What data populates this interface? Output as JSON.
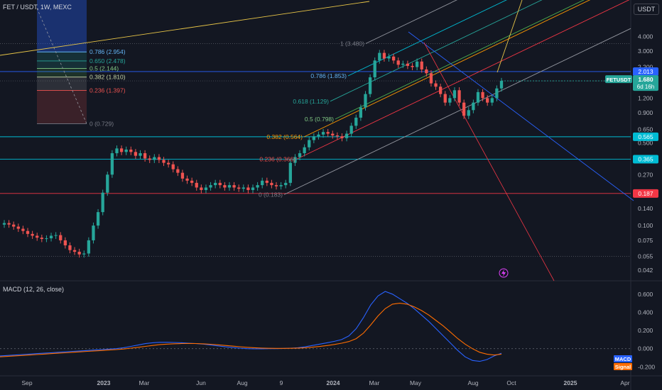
{
  "header": {
    "symbol_title": "FET / USDT, 1W, MEXC",
    "currency": "USDT",
    "macd_title": "MACD (12, 26, close)"
  },
  "colors": {
    "background": "#131722",
    "up": "#26a69a",
    "down": "#ef5350",
    "grid": "#2a2e39",
    "text": "#b2b5be",
    "macd_line": "#2962ff",
    "signal_line": "#ff6d00"
  },
  "chart_data": [
    {
      "type": "candlestick",
      "name": "FETUSDT",
      "scale": "log",
      "ylim": [
        0.036,
        6.0
      ],
      "y_ticks": [
        4.0,
        3.0,
        2.2,
        1.6,
        1.2,
        0.9,
        0.65,
        0.5,
        0.27,
        0.14,
        0.1,
        0.075,
        0.055,
        0.042
      ],
      "y_tick_labels": [
        "4.000",
        "3.000",
        "2.200",
        "1.600",
        "1.200",
        "0.900",
        "0.650",
        "0.500",
        "0.270",
        "0.140",
        "0.100",
        "0.075",
        "0.055",
        "0.042"
      ],
      "x_ticks": [
        "Sep",
        "2023",
        "Mar",
        "Jun",
        "Aug",
        "9",
        "2024",
        "Mar",
        "May",
        "Aug",
        "Oct",
        "2025",
        "Apr"
      ],
      "closes": [
        0.105,
        0.102,
        0.098,
        0.094,
        0.09,
        0.085,
        0.082,
        0.079,
        0.077,
        0.078,
        0.082,
        0.083,
        0.075,
        0.068,
        0.062,
        0.06,
        0.057,
        0.058,
        0.075,
        0.1,
        0.13,
        0.19,
        0.27,
        0.41,
        0.45,
        0.42,
        0.44,
        0.42,
        0.39,
        0.41,
        0.37,
        0.36,
        0.38,
        0.36,
        0.34,
        0.33,
        0.3,
        0.28,
        0.25,
        0.24,
        0.23,
        0.21,
        0.2,
        0.21,
        0.22,
        0.23,
        0.22,
        0.21,
        0.22,
        0.21,
        0.205,
        0.21,
        0.2,
        0.21,
        0.22,
        0.24,
        0.23,
        0.22,
        0.215,
        0.22,
        0.23,
        0.34,
        0.38,
        0.41,
        0.46,
        0.53,
        0.57,
        0.59,
        0.62,
        0.6,
        0.58,
        0.57,
        0.55,
        0.6,
        0.7,
        0.82,
        1.0,
        1.3,
        1.8,
        2.5,
        2.9,
        2.6,
        2.7,
        2.5,
        2.3,
        2.35,
        2.25,
        2.2,
        2.45,
        2.1,
        1.95,
        1.6,
        1.5,
        1.3,
        1.1,
        1.2,
        1.4,
        1.1,
        0.85,
        0.95,
        1.1,
        1.35,
        1.2,
        1.1,
        1.2,
        1.45,
        1.68
      ],
      "last_price": {
        "symbol": "FETUSDT",
        "price": "1.680",
        "countdown": "6d 16h"
      },
      "price_markers": [
        {
          "label": "2.013",
          "price": 2.013,
          "color": "#2962ff"
        },
        {
          "label": "0.565",
          "price": 0.565,
          "color": "#00bcd4"
        },
        {
          "label": "0.365",
          "price": 0.365,
          "color": "#00bcd4"
        },
        {
          "label": "0.187",
          "price": 0.187,
          "color": "#f23645"
        }
      ],
      "horizontal_lines": [
        {
          "price": 2.013,
          "color": "#2962ff"
        },
        {
          "price": 0.565,
          "color": "#00bcd4"
        },
        {
          "price": 0.365,
          "color": "#00bcd4"
        },
        {
          "price": 0.187,
          "color": "#f23645"
        }
      ],
      "fib_retracement_left": [
        {
          "label": "0.786 (2.954)",
          "price": 2.954,
          "color": "#64b5f6"
        },
        {
          "label": "0.650 (2.478)",
          "price": 2.478,
          "color": "#26a69a"
        },
        {
          "label": "0.5 (2.144)",
          "price": 2.144,
          "color": "#81c784"
        },
        {
          "label": "0.382 (1.810)",
          "price": 1.81,
          "color": "#c8d6a8"
        },
        {
          "label": "0.236 (1.397)",
          "price": 1.397,
          "color": "#ef5350"
        },
        {
          "label": "0 (0.729)",
          "price": 0.729,
          "color": "#787b86"
        }
      ],
      "fib_channel_labels": [
        {
          "label": "1 (3.480)",
          "price": 3.48,
          "color": "#787b86"
        },
        {
          "label": "0.786 (1.853)",
          "price": 1.853,
          "color": "#64b5f6"
        },
        {
          "label": "0.618 (1.129)",
          "price": 1.129,
          "color": "#26a69a"
        },
        {
          "label": "0.5 (0.798)",
          "price": 0.798,
          "color": "#81c784"
        },
        {
          "label": "0.382 (0.564)",
          "price": 0.564,
          "color": "#ff9800"
        },
        {
          "label": "0.236 (0.366)",
          "price": 0.366,
          "color": "#ef5350"
        },
        {
          "label": "0 (0.183)",
          "price": 0.183,
          "color": "#787b86"
        }
      ]
    },
    {
      "type": "line",
      "name": "MACD (12, 26, close)",
      "ylim": [
        -0.26,
        0.7
      ],
      "y_ticks": [
        0.6,
        0.4,
        0.2,
        0.0,
        -0.2
      ],
      "y_tick_labels": [
        "0.600",
        "0.400",
        "0.200",
        "0.000",
        "-0.200"
      ],
      "series": [
        {
          "name": "MACD",
          "color": "#2962ff",
          "values": [
            -0.08,
            -0.075,
            -0.07,
            -0.065,
            -0.06,
            -0.055,
            -0.05,
            -0.045,
            -0.04,
            -0.035,
            -0.03,
            -0.025,
            -0.02,
            -0.015,
            -0.01,
            -0.005,
            0.0,
            0.01,
            0.025,
            0.04,
            0.055,
            0.065,
            0.07,
            0.07,
            0.068,
            0.065,
            0.06,
            0.055,
            0.05,
            0.04,
            0.03,
            0.02,
            0.012,
            0.005,
            0.0,
            -0.002,
            -0.002,
            0.0,
            0.0,
            0.002,
            0.005,
            0.01,
            0.02,
            0.035,
            0.05,
            0.065,
            0.08,
            0.1,
            0.14,
            0.22,
            0.34,
            0.48,
            0.58,
            0.63,
            0.6,
            0.55,
            0.5,
            0.44,
            0.37,
            0.3,
            0.22,
            0.14,
            0.06,
            -0.02,
            -0.09,
            -0.13,
            -0.14,
            -0.12,
            -0.08,
            -0.05
          ]
        },
        {
          "name": "Signal",
          "color": "#ff6d00",
          "values": [
            -0.09,
            -0.085,
            -0.08,
            -0.075,
            -0.07,
            -0.065,
            -0.06,
            -0.055,
            -0.05,
            -0.045,
            -0.04,
            -0.035,
            -0.03,
            -0.025,
            -0.02,
            -0.015,
            -0.01,
            -0.004,
            0.005,
            0.015,
            0.025,
            0.035,
            0.045,
            0.05,
            0.054,
            0.056,
            0.057,
            0.056,
            0.053,
            0.048,
            0.042,
            0.035,
            0.028,
            0.021,
            0.015,
            0.01,
            0.006,
            0.004,
            0.003,
            0.003,
            0.004,
            0.006,
            0.01,
            0.016,
            0.024,
            0.034,
            0.046,
            0.06,
            0.078,
            0.11,
            0.17,
            0.26,
            0.36,
            0.44,
            0.49,
            0.5,
            0.49,
            0.46,
            0.42,
            0.37,
            0.31,
            0.25,
            0.18,
            0.11,
            0.05,
            0.0,
            -0.04,
            -0.06,
            -0.07,
            -0.06
          ]
        }
      ],
      "legend_labels": [
        {
          "label": "MACD",
          "color": "#2962ff"
        },
        {
          "label": "Signal",
          "color": "#ff6d00"
        }
      ]
    }
  ]
}
